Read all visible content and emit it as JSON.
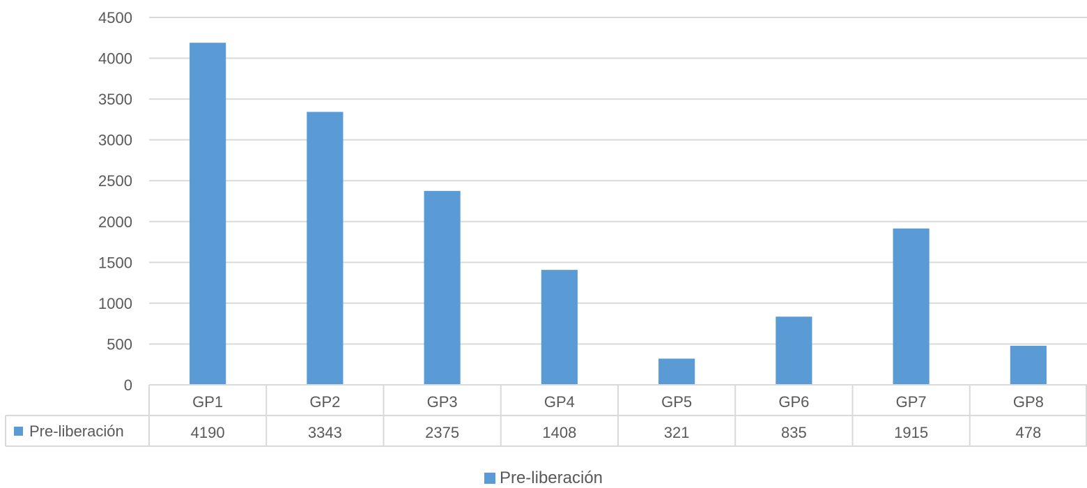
{
  "chart_data": {
    "type": "bar",
    "categories": [
      "GP1",
      "GP2",
      "GP3",
      "GP4",
      "GP5",
      "GP6",
      "GP7",
      "GP8"
    ],
    "series": [
      {
        "name": "Pre-liberación",
        "values": [
          4190,
          3343,
          2375,
          1408,
          321,
          835,
          1915,
          478
        ],
        "color": "#5b9bd5"
      }
    ],
    "yticks": [
      "0",
      "500",
      "1000",
      "1500",
      "2000",
      "2500",
      "3000",
      "3500",
      "4000",
      "4500"
    ],
    "ylim": [
      0,
      4500
    ],
    "grid": true,
    "data_table": true,
    "legend_position": "bottom",
    "title": "",
    "xlabel": "",
    "ylabel": ""
  }
}
